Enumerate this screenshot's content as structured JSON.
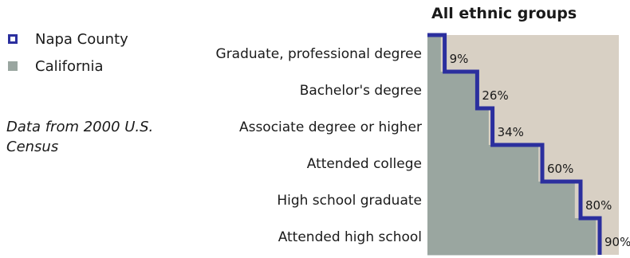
{
  "legend": {
    "items": [
      {
        "label": "Napa County",
        "color": "#2b2f9e",
        "style": "outline"
      },
      {
        "label": "California",
        "color": "#9aa6a0",
        "style": "filled"
      }
    ]
  },
  "note": "Data from 2000 U.S. Census",
  "chart_data": {
    "type": "area",
    "title": "All ethnic groups",
    "orientation": "horizontal-step",
    "categories": [
      "Graduate, professional degree",
      "Bachelor's degree",
      "Associate degree or higher",
      "Attended college",
      "High school graduate",
      "Attended high school"
    ],
    "series": [
      {
        "name": "Napa County",
        "values": [
          9,
          26,
          34,
          60,
          80,
          90
        ],
        "color": "#2b2f9e",
        "style": "step-line"
      },
      {
        "name": "California",
        "values": [
          7,
          25,
          32,
          58,
          77,
          88
        ],
        "color": "#9aa6a0",
        "style": "filled-step"
      }
    ],
    "value_labels": [
      "9%",
      "26%",
      "34%",
      "60%",
      "80%",
      "90%"
    ],
    "xlim": [
      0,
      100
    ],
    "background_color": "#d8d0c4",
    "grid": false
  }
}
